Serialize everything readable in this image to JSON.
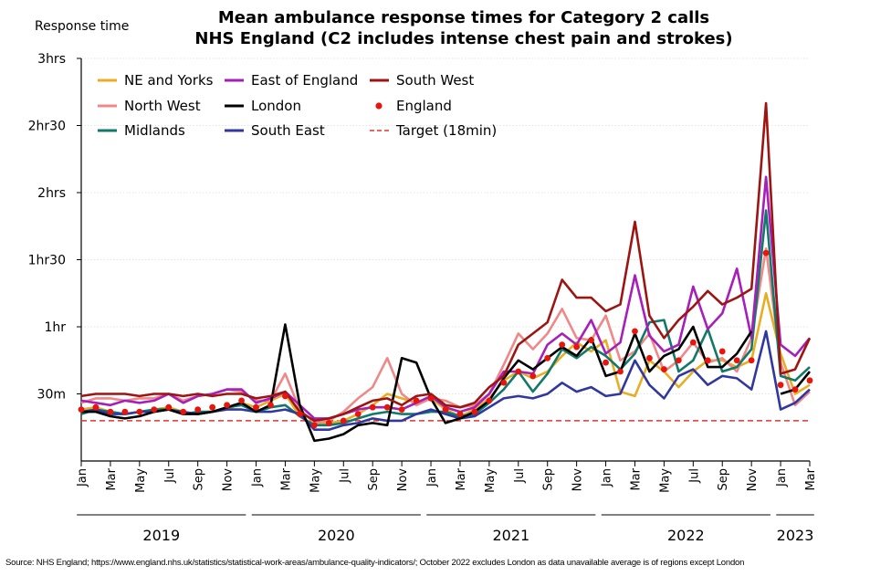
{
  "chart_data": {
    "type": "line",
    "title": [
      "Mean ambulance response times for Category 2 calls",
      "NHS England (C2 includes intense chest pain and strokes)"
    ],
    "ylabel": "Response time",
    "y_unit": "minutes",
    "ylim": [
      0,
      180
    ],
    "y_ticks": [
      {
        "value": 30,
        "label": "30m"
      },
      {
        "value": 60,
        "label": "1hr"
      },
      {
        "value": 90,
        "label": "1hr30"
      },
      {
        "value": 120,
        "label": "2hrs"
      },
      {
        "value": 150,
        "label": "2hr30"
      },
      {
        "value": 180,
        "label": "3hrs"
      }
    ],
    "x": [
      "2019-01",
      "2019-02",
      "2019-03",
      "2019-04",
      "2019-05",
      "2019-06",
      "2019-07",
      "2019-08",
      "2019-09",
      "2019-10",
      "2019-11",
      "2019-12",
      "2020-01",
      "2020-02",
      "2020-03",
      "2020-04",
      "2020-05",
      "2020-06",
      "2020-07",
      "2020-08",
      "2020-09",
      "2020-10",
      "2020-11",
      "2020-12",
      "2021-01",
      "2021-02",
      "2021-03",
      "2021-04",
      "2021-05",
      "2021-06",
      "2021-07",
      "2021-08",
      "2021-09",
      "2021-10",
      "2021-11",
      "2021-12",
      "2022-01",
      "2022-02",
      "2022-03",
      "2022-04",
      "2022-05",
      "2022-06",
      "2022-07",
      "2022-08",
      "2022-09",
      "2022-10",
      "2022-11",
      "2022-12",
      "2023-01",
      "2023-02",
      "2023-03"
    ],
    "x_tick_labels": [
      "Jan",
      "Mar",
      "May",
      "Jul",
      "Sep",
      "Nov",
      "Jan",
      "Mar",
      "May",
      "Jul",
      "Sep",
      "Nov",
      "Jan",
      "Mar",
      "May",
      "Jul",
      "Sep",
      "Nov",
      "Jan",
      "Mar",
      "May",
      "Jul",
      "Sep",
      "Nov",
      "Jan",
      "Mar"
    ],
    "year_labels": [
      "2019",
      "2020",
      "2021",
      "2022",
      "2023"
    ],
    "target": {
      "name": "Target (18min)",
      "value": 18,
      "color": "#e8322c"
    },
    "series": [
      {
        "name": "NE and Yorks",
        "color": "#e8ad25",
        "style": "line",
        "values": [
          23,
          24,
          22,
          21,
          22,
          23,
          24,
          22,
          21,
          22,
          23,
          26,
          24,
          27,
          30,
          20,
          16,
          17,
          18,
          21,
          25,
          30,
          28,
          26,
          28,
          23,
          20,
          23,
          28,
          36,
          40,
          37,
          40,
          47,
          53,
          49,
          54,
          31,
          29,
          45,
          40,
          33,
          40,
          45,
          45,
          42,
          45,
          75,
          48,
          30,
          34
        ]
      },
      {
        "name": "North West",
        "color": "#f08888",
        "style": "line",
        "values": [
          26,
          28,
          28,
          27,
          28,
          28,
          30,
          27,
          29,
          30,
          32,
          31,
          27,
          27,
          39,
          23,
          17,
          18,
          22,
          28,
          33,
          46,
          30,
          25,
          28,
          27,
          24,
          25,
          30,
          43,
          57,
          50,
          57,
          68,
          55,
          54,
          65,
          45,
          49,
          57,
          40,
          45,
          53,
          44,
          46,
          40,
          55,
          95,
          44,
          25,
          31
        ]
      },
      {
        "name": "Midlands",
        "color": "#10796a",
        "style": "line",
        "values": [
          21,
          23,
          22,
          21,
          22,
          23,
          23,
          21,
          22,
          22,
          24,
          25,
          22,
          24,
          25,
          20,
          16,
          16,
          17,
          19,
          21,
          22,
          21,
          21,
          22,
          22,
          20,
          21,
          26,
          32,
          40,
          31,
          39,
          50,
          46,
          51,
          47,
          41,
          48,
          62,
          63,
          40,
          45,
          59,
          40,
          42,
          50,
          112,
          38,
          36,
          42
        ]
      },
      {
        "name": "East of England",
        "color": "#a61fb9",
        "style": "line",
        "values": [
          27,
          26,
          25,
          27,
          26,
          27,
          30,
          26,
          29,
          30,
          32,
          32,
          26,
          28,
          31,
          25,
          19,
          19,
          21,
          23,
          24,
          24,
          23,
          26,
          29,
          24,
          22,
          24,
          30,
          40,
          40,
          39,
          52,
          57,
          52,
          63,
          48,
          53,
          83,
          56,
          49,
          52,
          78,
          59,
          66,
          86,
          55,
          127,
          52,
          47,
          55
        ]
      },
      {
        "name": "London",
        "color": "#000000",
        "style": "line",
        "values": [
          22,
          22,
          20,
          19,
          20,
          22,
          23,
          21,
          21,
          22,
          24,
          26,
          22,
          25,
          61,
          25,
          9,
          10,
          12,
          16,
          17,
          16,
          46,
          44,
          28,
          17,
          19,
          22,
          27,
          37,
          45,
          41,
          46,
          51,
          47,
          55,
          38,
          40,
          57,
          40,
          47,
          50,
          60,
          42,
          42,
          48,
          58,
          null,
          30,
          32,
          40
        ]
      },
      {
        "name": "South East",
        "color": "#3038a0",
        "style": "line",
        "values": [
          22,
          23,
          21,
          21,
          22,
          22,
          23,
          22,
          21,
          22,
          23,
          23,
          22,
          22,
          23,
          21,
          14,
          14,
          16,
          17,
          19,
          18,
          18,
          21,
          23,
          21,
          19,
          20,
          24,
          28,
          29,
          28,
          30,
          35,
          31,
          33,
          29,
          30,
          45,
          34,
          28,
          38,
          41,
          34,
          38,
          37,
          32,
          58,
          23,
          26,
          32
        ]
      },
      {
        "name": "South West",
        "color": "#9c1513",
        "style": "line",
        "values": [
          29,
          30,
          30,
          30,
          29,
          30,
          30,
          29,
          30,
          29,
          30,
          30,
          28,
          29,
          31,
          22,
          18,
          19,
          21,
          24,
          27,
          28,
          25,
          29,
          30,
          25,
          24,
          26,
          33,
          38,
          52,
          57,
          62,
          81,
          73,
          73,
          67,
          70,
          107,
          65,
          55,
          63,
          69,
          76,
          70,
          73,
          77,
          160,
          39,
          41,
          55
        ]
      },
      {
        "name": "England",
        "color": "#e8140e",
        "style": "dots",
        "values": [
          23,
          24,
          22,
          22,
          22,
          23,
          24,
          22,
          23,
          24,
          25,
          27,
          24,
          25,
          29,
          21,
          16,
          17,
          18,
          21,
          24,
          24,
          23,
          27,
          28,
          23,
          21,
          22,
          27,
          35,
          40,
          38,
          46,
          52,
          51,
          54,
          44,
          40,
          58,
          46,
          41,
          45,
          53,
          45,
          49,
          45,
          45,
          93,
          34,
          32,
          36
        ]
      }
    ]
  },
  "source_text": "Source: NHS England; https://www.england.nhs.uk/statistics/statistical-work-areas/ambulance-quality-indicators/; October 2022 excludes London as data unavailable average is of regions except London"
}
